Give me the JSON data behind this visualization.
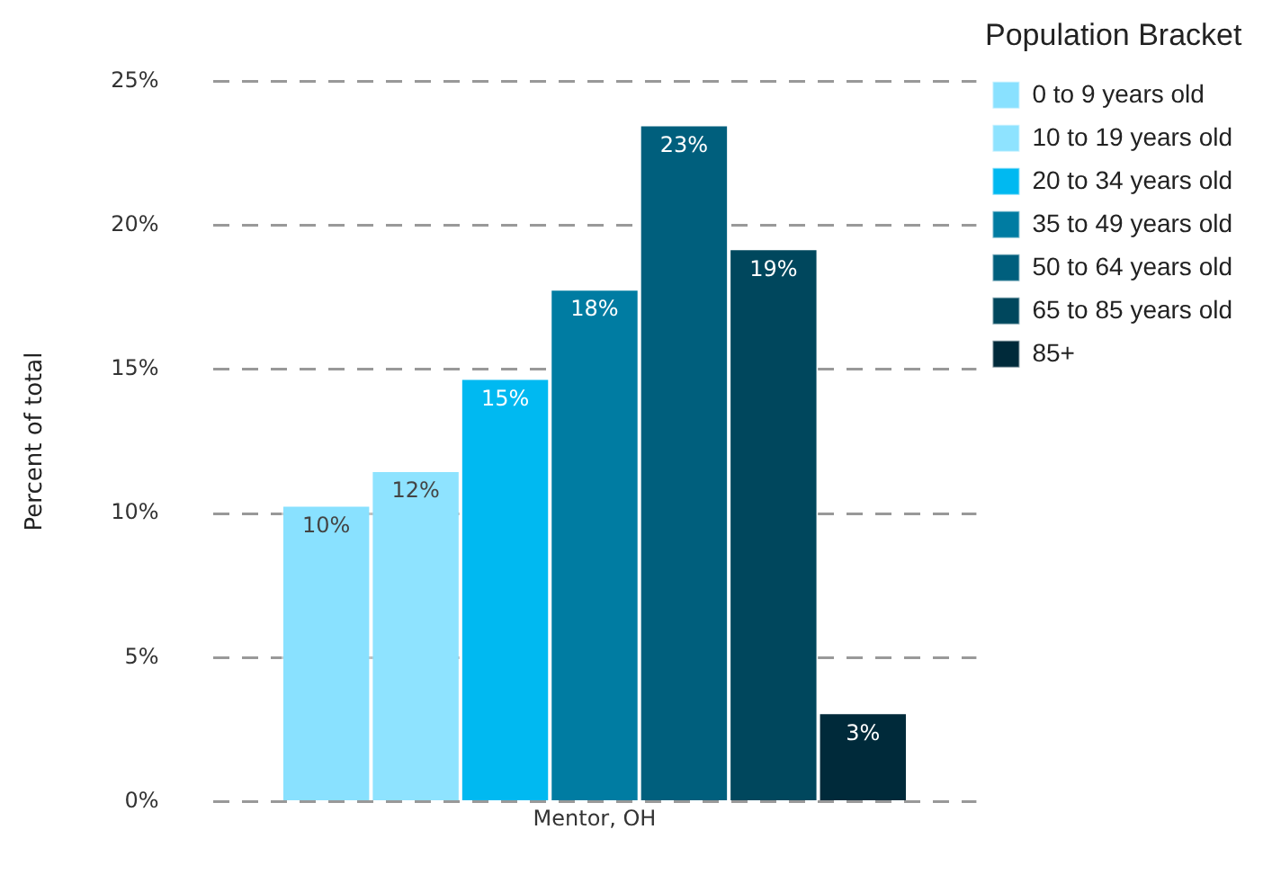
{
  "chart_data": {
    "type": "bar",
    "ylabel": "Percent of total",
    "legend_title": "Population Bracket",
    "legend": "top right",
    "grid": "y",
    "categories": [
      "Mentor, OH"
    ],
    "ylim": [
      0,
      25
    ],
    "yticks": [
      {
        "value": 0,
        "label": "0%"
      },
      {
        "value": 5,
        "label": "5%"
      },
      {
        "value": 10,
        "label": "10%"
      },
      {
        "value": 15,
        "label": "15%"
      },
      {
        "value": 20,
        "label": "20%"
      },
      {
        "value": 25,
        "label": "25%"
      }
    ],
    "series": [
      {
        "name": "0 to 9 years old",
        "color": "#89e1ff",
        "values": [
          10.3
        ],
        "value_labels": [
          "10%"
        ]
      },
      {
        "name": "10 to 19 years old",
        "color": "#8ee3ff",
        "values": [
          11.5
        ],
        "value_labels": [
          "12%"
        ]
      },
      {
        "name": "20 to 34 years old",
        "color": "#00b9f1",
        "values": [
          14.7
        ],
        "value_labels": [
          "15%"
        ]
      },
      {
        "name": "35 to 49 years old",
        "color": "#007ca2",
        "values": [
          17.8
        ],
        "value_labels": [
          "18%"
        ]
      },
      {
        "name": "50 to 64 years old",
        "color": "#005f7d",
        "values": [
          23.5
        ],
        "value_labels": [
          "23%"
        ]
      },
      {
        "name": "65 to 85 years old",
        "color": "#00475d",
        "values": [
          19.2
        ],
        "value_labels": [
          "19%"
        ]
      },
      {
        "name": "85+",
        "color": "#002a3a",
        "values": [
          3.1
        ],
        "value_labels": [
          "3%"
        ]
      }
    ]
  }
}
